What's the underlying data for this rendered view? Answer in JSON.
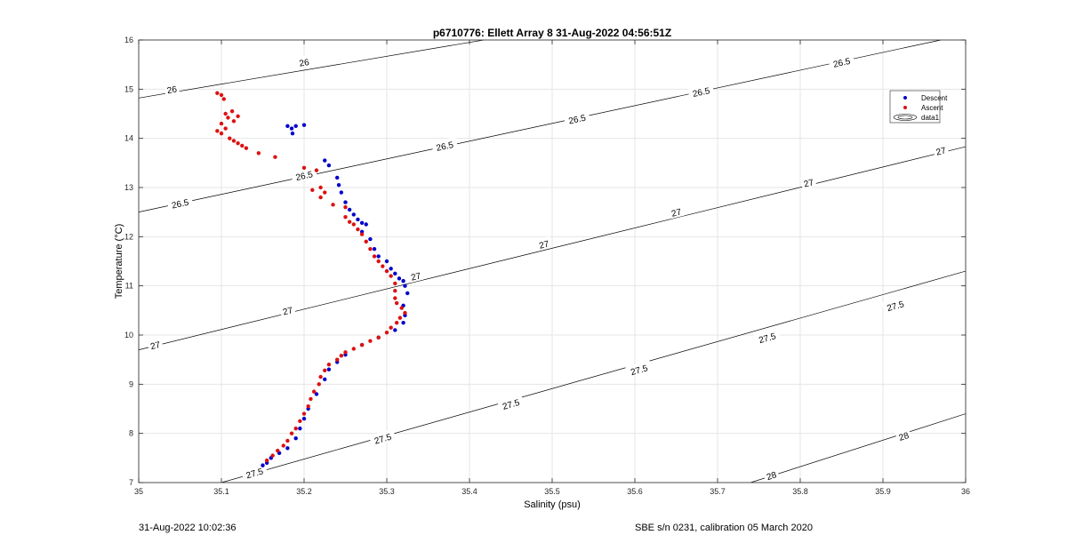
{
  "chart_data": {
    "type": "scatter",
    "title": "p6710776: Ellett Array 8 31-Aug-2022 04:56:51Z",
    "xlabel": "Salinity (psu)",
    "ylabel": "Temperature (°C)",
    "xlim": [
      35,
      36
    ],
    "ylim": [
      7,
      16
    ],
    "x_ticks": [
      "35",
      "35.1",
      "35.2",
      "35.3",
      "35.4",
      "35.5",
      "35.6",
      "35.7",
      "35.8",
      "35.9",
      "36"
    ],
    "y_ticks": [
      "7",
      "8",
      "9",
      "10",
      "11",
      "12",
      "13",
      "14",
      "15",
      "16"
    ],
    "grid": true,
    "legend_position": "top-right",
    "series": [
      {
        "name": "Descent",
        "color": "#0000cc",
        "marker": "dot",
        "points": [
          [
            35.18,
            14.25
          ],
          [
            35.185,
            14.2
          ],
          [
            35.19,
            14.25
          ],
          [
            35.186,
            14.1
          ],
          [
            35.2,
            14.27
          ],
          [
            35.225,
            13.55
          ],
          [
            35.23,
            13.45
          ],
          [
            35.24,
            13.2
          ],
          [
            35.242,
            13.05
          ],
          [
            35.245,
            12.9
          ],
          [
            35.25,
            12.7
          ],
          [
            35.255,
            12.55
          ],
          [
            35.26,
            12.45
          ],
          [
            35.265,
            12.35
          ],
          [
            35.27,
            12.28
          ],
          [
            35.275,
            12.25
          ],
          [
            35.27,
            12.1
          ],
          [
            35.28,
            11.95
          ],
          [
            35.285,
            11.75
          ],
          [
            35.29,
            11.6
          ],
          [
            35.3,
            11.5
          ],
          [
            35.305,
            11.35
          ],
          [
            35.31,
            11.25
          ],
          [
            35.315,
            11.15
          ],
          [
            35.32,
            11.1
          ],
          [
            35.322,
            11.0
          ],
          [
            35.325,
            10.85
          ],
          [
            35.32,
            10.6
          ],
          [
            35.322,
            10.4
          ],
          [
            35.32,
            10.25
          ],
          [
            35.31,
            10.1
          ],
          [
            35.29,
            9.95
          ],
          [
            35.27,
            9.8
          ],
          [
            35.25,
            9.6
          ],
          [
            35.24,
            9.45
          ],
          [
            35.23,
            9.3
          ],
          [
            35.225,
            9.1
          ],
          [
            35.215,
            8.8
          ],
          [
            35.205,
            8.5
          ],
          [
            35.2,
            8.3
          ],
          [
            35.195,
            8.1
          ],
          [
            35.19,
            7.9
          ],
          [
            35.18,
            7.7
          ],
          [
            35.17,
            7.6
          ],
          [
            35.16,
            7.5
          ],
          [
            35.155,
            7.4
          ],
          [
            35.15,
            7.35
          ]
        ]
      },
      {
        "name": "Ascent",
        "color": "#dd1111",
        "marker": "dot",
        "points": [
          [
            35.095,
            14.92
          ],
          [
            35.1,
            14.88
          ],
          [
            35.103,
            14.8
          ],
          [
            35.113,
            14.55
          ],
          [
            35.105,
            14.5
          ],
          [
            35.108,
            14.42
          ],
          [
            35.12,
            14.45
          ],
          [
            35.115,
            14.35
          ],
          [
            35.1,
            14.3
          ],
          [
            35.105,
            14.2
          ],
          [
            35.095,
            14.15
          ],
          [
            35.1,
            14.1
          ],
          [
            35.11,
            14.0
          ],
          [
            35.115,
            13.95
          ],
          [
            35.12,
            13.9
          ],
          [
            35.125,
            13.85
          ],
          [
            35.13,
            13.8
          ],
          [
            35.145,
            13.7
          ],
          [
            35.165,
            13.62
          ],
          [
            35.2,
            13.4
          ],
          [
            35.215,
            13.35
          ],
          [
            35.22,
            13.0
          ],
          [
            35.21,
            12.95
          ],
          [
            35.225,
            12.9
          ],
          [
            35.22,
            12.8
          ],
          [
            35.235,
            12.65
          ],
          [
            35.25,
            12.6
          ],
          [
            35.25,
            12.4
          ],
          [
            35.255,
            12.3
          ],
          [
            35.26,
            12.25
          ],
          [
            35.265,
            12.15
          ],
          [
            35.27,
            12.05
          ],
          [
            35.275,
            11.9
          ],
          [
            35.28,
            11.75
          ],
          [
            35.285,
            11.6
          ],
          [
            35.29,
            11.5
          ],
          [
            35.295,
            11.4
          ],
          [
            35.3,
            11.3
          ],
          [
            35.305,
            11.2
          ],
          [
            35.31,
            11.05
          ],
          [
            35.31,
            10.9
          ],
          [
            35.31,
            10.75
          ],
          [
            35.312,
            10.65
          ],
          [
            35.318,
            10.55
          ],
          [
            35.322,
            10.45
          ],
          [
            35.316,
            10.35
          ],
          [
            35.312,
            10.25
          ],
          [
            35.305,
            10.15
          ],
          [
            35.3,
            10.05
          ],
          [
            35.29,
            9.95
          ],
          [
            35.28,
            9.88
          ],
          [
            35.27,
            9.8
          ],
          [
            35.26,
            9.72
          ],
          [
            35.25,
            9.65
          ],
          [
            35.245,
            9.58
          ],
          [
            35.24,
            9.5
          ],
          [
            35.23,
            9.4
          ],
          [
            35.225,
            9.28
          ],
          [
            35.22,
            9.15
          ],
          [
            35.218,
            9.0
          ],
          [
            35.212,
            8.85
          ],
          [
            35.208,
            8.7
          ],
          [
            35.205,
            8.55
          ],
          [
            35.2,
            8.4
          ],
          [
            35.195,
            8.25
          ],
          [
            35.19,
            8.1
          ],
          [
            35.185,
            8.0
          ],
          [
            35.18,
            7.85
          ],
          [
            35.175,
            7.75
          ],
          [
            35.168,
            7.65
          ],
          [
            35.162,
            7.55
          ],
          [
            35.155,
            7.45
          ]
        ]
      }
    ],
    "legend": [
      {
        "label": "Descent",
        "color": "#0000cc",
        "symbol": "dot"
      },
      {
        "label": "Ascent",
        "color": "#dd1111",
        "symbol": "dot"
      },
      {
        "label": "data1",
        "color": "#000000",
        "symbol": "contour"
      }
    ],
    "contours": [
      {
        "label": "26",
        "points": [
          [
            35.0,
            14.82
          ],
          [
            35.7,
            16.8
          ]
        ]
      },
      {
        "label": "26.5",
        "points": [
          [
            35.0,
            12.5
          ],
          [
            35.97,
            16.0
          ]
        ]
      },
      {
        "label": "27",
        "points": [
          [
            35.0,
            9.7
          ],
          [
            36.0,
            13.83
          ]
        ]
      },
      {
        "label": "27.5",
        "points": [
          [
            35.1,
            7.0
          ],
          [
            36.0,
            11.3
          ]
        ]
      },
      {
        "label": "28",
        "points": [
          [
            35.74,
            7.0
          ],
          [
            36.0,
            8.4
          ]
        ]
      }
    ],
    "contour_labels": [
      {
        "text": "26",
        "x": 35.04,
        "y": 15.0
      },
      {
        "text": "26",
        "x": 35.2,
        "y": 15.55
      },
      {
        "text": "26.5",
        "x": 35.05,
        "y": 12.68
      },
      {
        "text": "26.5",
        "x": 35.2,
        "y": 13.25
      },
      {
        "text": "26.5",
        "x": 35.37,
        "y": 13.85
      },
      {
        "text": "26.5",
        "x": 35.53,
        "y": 14.4
      },
      {
        "text": "26.5",
        "x": 35.68,
        "y": 14.95
      },
      {
        "text": "26.5",
        "x": 35.85,
        "y": 15.55
      },
      {
        "text": "27",
        "x": 35.02,
        "y": 9.8
      },
      {
        "text": "27",
        "x": 35.18,
        "y": 10.5
      },
      {
        "text": "27",
        "x": 35.335,
        "y": 11.2
      },
      {
        "text": "27",
        "x": 35.49,
        "y": 11.85
      },
      {
        "text": "27",
        "x": 35.65,
        "y": 12.5
      },
      {
        "text": "27",
        "x": 35.81,
        "y": 13.1
      },
      {
        "text": "27",
        "x": 35.97,
        "y": 13.75
      },
      {
        "text": "27.5",
        "x": 35.14,
        "y": 7.2
      },
      {
        "text": "27.5",
        "x": 35.295,
        "y": 7.9
      },
      {
        "text": "27.5",
        "x": 35.45,
        "y": 8.6
      },
      {
        "text": "27.5",
        "x": 35.605,
        "y": 9.3
      },
      {
        "text": "27.5",
        "x": 35.76,
        "y": 9.95
      },
      {
        "text": "27.5",
        "x": 35.915,
        "y": 10.6
      },
      {
        "text": "28",
        "x": 35.765,
        "y": 7.15
      },
      {
        "text": "28",
        "x": 35.925,
        "y": 7.95
      }
    ]
  },
  "footer": {
    "left": "31-Aug-2022 10:02:36",
    "right": "SBE s/n 0231, calibration 05 March 2020"
  }
}
